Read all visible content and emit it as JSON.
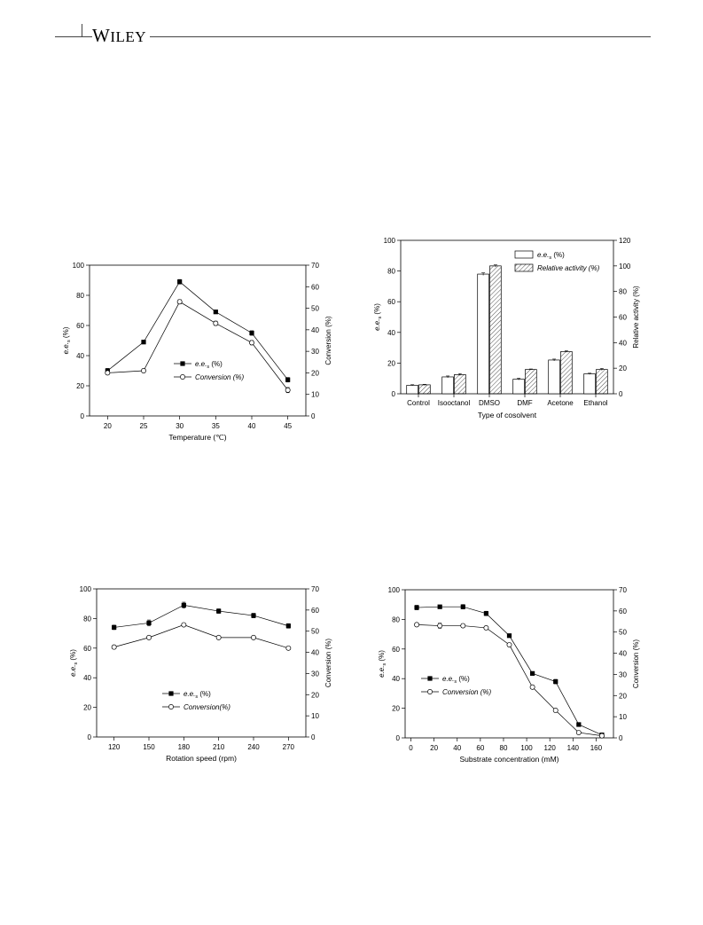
{
  "header": {
    "publisher": "WILEY",
    "publisher_first_letter": "W",
    "publisher_rest": "ILEY"
  },
  "chart_data": [
    {
      "id": "temperature",
      "type": "line",
      "xlabel": "Temperature (℃)",
      "ylabel_left_base": "e.e.",
      "ylabel_left_sub": "s",
      "ylabel_left_suffix": " (%)",
      "ylabel_right": "Conversion (%)",
      "x": [
        20,
        25,
        30,
        35,
        40,
        45
      ],
      "xticks": [
        "20",
        "25",
        "30",
        "35",
        "40",
        "45"
      ],
      "ylim_left": [
        0,
        100
      ],
      "yticks_left": [
        "0",
        "20",
        "40",
        "60",
        "80",
        "100"
      ],
      "ylim_right": [
        0,
        70
      ],
      "yticks_right": [
        "0",
        "10",
        "20",
        "30",
        "40",
        "50",
        "60",
        "70"
      ],
      "legend_position": "middle-right",
      "series": [
        {
          "name_base": "e.e.",
          "name_sub": "s",
          "name_suffix": " (%)",
          "marker": "filled-square",
          "axis": "left",
          "values": [
            30,
            49,
            89,
            69,
            55,
            24
          ],
          "errors": [
            1.5,
            1,
            1.5,
            1,
            1.5,
            1.5
          ]
        },
        {
          "name_base": "Conversion (%)",
          "name_sub": "",
          "name_suffix": "",
          "marker": "open-circle",
          "axis": "right",
          "values": [
            20,
            21,
            53,
            43,
            34,
            12
          ],
          "errors": [
            0.8,
            0.8,
            1,
            1,
            1,
            1.2
          ]
        }
      ]
    },
    {
      "id": "cosolvent",
      "type": "bar",
      "xlabel": "Type of cosolvent",
      "ylabel_left_base": "e.e.",
      "ylabel_left_sub": "s",
      "ylabel_left_suffix": " (%)",
      "ylabel_right": "Relative activity (%)",
      "categories": [
        "Control",
        "Isooctanol",
        "DMSO",
        "DMF",
        "Acetone",
        "Ethanol"
      ],
      "ylim_left": [
        0,
        100
      ],
      "yticks_left": [
        "0",
        "20",
        "40",
        "60",
        "80",
        "100"
      ],
      "ylim_right": [
        0,
        120
      ],
      "yticks_right": [
        "0",
        "20",
        "40",
        "60",
        "80",
        "100",
        "120"
      ],
      "legend_position": "top-right",
      "series": [
        {
          "name_base": "e.e.",
          "name_sub": "s",
          "name_suffix": " (%)",
          "fill": "open",
          "axis": "left",
          "values": [
            5.5,
            11,
            78,
            9.5,
            22,
            13
          ],
          "errors": [
            0.4,
            0.6,
            0.8,
            0.6,
            0.6,
            0.4
          ]
        },
        {
          "name_base": "Relative activity (%)",
          "name_sub": "",
          "name_suffix": "",
          "fill": "hatched",
          "axis": "right",
          "values": [
            7,
            15,
            100,
            19,
            33,
            19
          ],
          "errors": [
            0.4,
            0.8,
            0.8,
            0.4,
            0.6,
            0.8
          ]
        }
      ]
    },
    {
      "id": "rotation",
      "type": "line",
      "xlabel": "Rotation speed (rpm)",
      "ylabel_left_base": "e.e.",
      "ylabel_left_sub": "s",
      "ylabel_left_suffix": " (%)",
      "ylabel_right": "Conversion (%)",
      "x": [
        120,
        150,
        180,
        210,
        240,
        270
      ],
      "xticks": [
        "120",
        "150",
        "180",
        "210",
        "240",
        "270"
      ],
      "ylim_left": [
        0,
        100
      ],
      "yticks_left": [
        "0",
        "20",
        "40",
        "60",
        "80",
        "100"
      ],
      "ylim_right": [
        0,
        70
      ],
      "yticks_right": [
        "0",
        "10",
        "20",
        "30",
        "40",
        "50",
        "60",
        "70"
      ],
      "legend_position": "lower-middle",
      "series": [
        {
          "name_base": "e.e.",
          "name_sub": "s",
          "name_suffix": " (%)",
          "marker": "filled-square",
          "axis": "left",
          "values": [
            74,
            77,
            89,
            85,
            82,
            75
          ],
          "errors": [
            1.5,
            2,
            2,
            1.5,
            1.5,
            1.5
          ]
        },
        {
          "name_base": "Conversion(%)",
          "name_sub": "",
          "name_suffix": "",
          "marker": "open-circle",
          "axis": "right",
          "values": [
            42.5,
            47,
            53,
            47,
            47,
            42
          ],
          "errors": [
            0.5,
            0.5,
            0.5,
            0.5,
            0.5,
            0.5
          ]
        }
      ]
    },
    {
      "id": "substrate",
      "type": "line",
      "xlabel": "Substrate concentration (mM)",
      "ylabel_left_base": "e.e.",
      "ylabel_left_sub": "s",
      "ylabel_left_suffix": " (%)",
      "ylabel_right": "Conversion (%)",
      "x": [
        5,
        25,
        45,
        65,
        85,
        105,
        125,
        145,
        165
      ],
      "xticks": [
        "0",
        "20",
        "40",
        "60",
        "80",
        "100",
        "120",
        "140",
        "160"
      ],
      "xtick_values": [
        0,
        20,
        40,
        60,
        80,
        100,
        120,
        140,
        160
      ],
      "xlim": [
        -5,
        175
      ],
      "ylim_left": [
        0,
        100
      ],
      "yticks_left": [
        "0",
        "20",
        "40",
        "60",
        "80",
        "100"
      ],
      "ylim_right": [
        0,
        70
      ],
      "yticks_right": [
        "0",
        "10",
        "20",
        "30",
        "40",
        "50",
        "60",
        "70"
      ],
      "legend_position": "middle-left",
      "series": [
        {
          "name_base": "e.e.",
          "name_sub": "s",
          "name_suffix": " (%)",
          "marker": "filled-square",
          "axis": "left",
          "values": [
            88,
            88.5,
            88.5,
            84,
            69,
            43.5,
            38,
            9,
            2
          ],
          "errors": [
            1.5,
            1,
            1.5,
            1.5,
            1,
            1,
            1.5,
            1,
            0.5
          ]
        },
        {
          "name_base": "Conversion (%)",
          "name_sub": "",
          "name_suffix": "",
          "marker": "open-circle",
          "axis": "right",
          "values": [
            53.5,
            53,
            53,
            52,
            44,
            24,
            13,
            2.5,
            1
          ],
          "errors": [
            0.8,
            1.2,
            0.8,
            0.8,
            0.8,
            0.8,
            0.5,
            0.5,
            0.5
          ]
        }
      ]
    }
  ]
}
